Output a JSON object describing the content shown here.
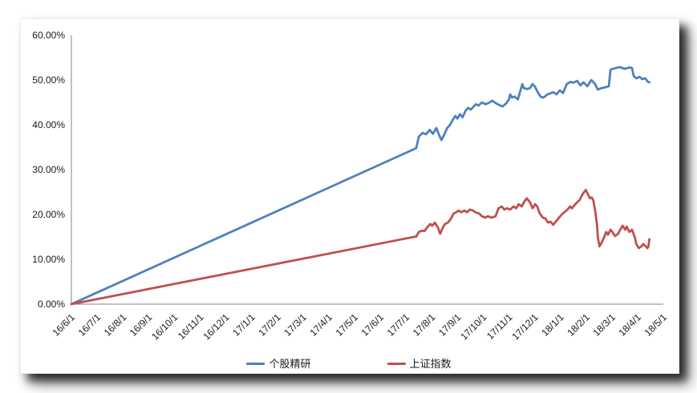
{
  "chart_data": {
    "type": "line",
    "title": "",
    "xlabel": "",
    "ylabel": "",
    "grid": false,
    "legend_position": "bottom",
    "axis_color": "#808080",
    "label_color": "#1a1a1a",
    "ylim": [
      0,
      60
    ],
    "y_ticks": [
      {
        "value": 0,
        "label": "0.00%"
      },
      {
        "value": 10,
        "label": "10.00%"
      },
      {
        "value": 20,
        "label": "20.00%"
      },
      {
        "value": 30,
        "label": "30.00%"
      },
      {
        "value": 40,
        "label": "40.00%"
      },
      {
        "value": 50,
        "label": "50.00%"
      },
      {
        "value": 60,
        "label": "60.00%"
      }
    ],
    "categories": [
      "16/6/1",
      "16/7/1",
      "16/8/1",
      "16/9/1",
      "16/10/1",
      "16/11/1",
      "16/12/1",
      "17/1/1",
      "17/2/1",
      "17/3/1",
      "17/4/1",
      "17/5/1",
      "17/6/1",
      "17/7/1",
      "17/8/1",
      "17/9/1",
      "17/10/1",
      "17/11/1",
      "17/12/1",
      "18/1/1",
      "18/2/1",
      "18/3/1",
      "18/4/1",
      "18/5/1"
    ],
    "x_unit": "months since 16/6/1 (fractional index into categories)",
    "series": [
      {
        "name": "个股精研",
        "color": "#4F81BD",
        "points": [
          [
            0,
            0
          ],
          [
            13.4,
            34.8
          ],
          [
            13.5,
            37.4
          ],
          [
            13.65,
            38.2
          ],
          [
            13.78,
            37.9
          ],
          [
            13.92,
            38.9
          ],
          [
            14.05,
            38.0
          ],
          [
            14.18,
            39.3
          ],
          [
            14.3,
            37.6
          ],
          [
            14.38,
            36.6
          ],
          [
            14.5,
            38.0
          ],
          [
            14.6,
            39.3
          ],
          [
            14.7,
            39.9
          ],
          [
            14.82,
            41.1
          ],
          [
            14.92,
            42.0
          ],
          [
            15.0,
            41.4
          ],
          [
            15.1,
            42.4
          ],
          [
            15.2,
            41.7
          ],
          [
            15.32,
            43.2
          ],
          [
            15.42,
            43.8
          ],
          [
            15.52,
            43.4
          ],
          [
            15.63,
            44.1
          ],
          [
            15.72,
            44.6
          ],
          [
            15.82,
            44.3
          ],
          [
            15.95,
            45.0
          ],
          [
            16.1,
            44.6
          ],
          [
            16.25,
            45.0
          ],
          [
            16.35,
            45.4
          ],
          [
            16.45,
            45.0
          ],
          [
            16.6,
            44.5
          ],
          [
            16.75,
            44.1
          ],
          [
            16.9,
            44.8
          ],
          [
            17.0,
            45.7
          ],
          [
            17.05,
            46.8
          ],
          [
            17.12,
            46.1
          ],
          [
            17.22,
            46.3
          ],
          [
            17.35,
            45.7
          ],
          [
            17.45,
            47.7
          ],
          [
            17.52,
            49.1
          ],
          [
            17.58,
            48.2
          ],
          [
            17.7,
            48.0
          ],
          [
            17.82,
            48.2
          ],
          [
            17.92,
            49.1
          ],
          [
            18.0,
            48.6
          ],
          [
            18.15,
            47.0
          ],
          [
            18.25,
            46.2
          ],
          [
            18.35,
            46.1
          ],
          [
            18.5,
            46.8
          ],
          [
            18.6,
            47.0
          ],
          [
            18.72,
            47.3
          ],
          [
            18.85,
            46.8
          ],
          [
            18.98,
            47.7
          ],
          [
            19.1,
            47.1
          ],
          [
            19.25,
            49.1
          ],
          [
            19.4,
            49.6
          ],
          [
            19.5,
            49.4
          ],
          [
            19.65,
            49.8
          ],
          [
            19.78,
            48.8
          ],
          [
            19.9,
            49.5
          ],
          [
            20.05,
            48.6
          ],
          [
            20.2,
            50.0
          ],
          [
            20.35,
            49.1
          ],
          [
            20.45,
            47.9
          ],
          [
            20.6,
            48.2
          ],
          [
            20.75,
            48.4
          ],
          [
            20.88,
            48.6
          ],
          [
            20.95,
            52.3
          ],
          [
            21.1,
            52.6
          ],
          [
            21.3,
            52.9
          ],
          [
            21.5,
            52.5
          ],
          [
            21.68,
            52.8
          ],
          [
            21.78,
            52.7
          ],
          [
            21.85,
            50.9
          ],
          [
            21.95,
            50.4
          ],
          [
            22.08,
            50.7
          ],
          [
            22.18,
            50.2
          ],
          [
            22.3,
            50.4
          ],
          [
            22.4,
            49.6
          ],
          [
            22.46,
            49.5
          ]
        ]
      },
      {
        "name": "上证指数",
        "color": "#C0504D",
        "points": [
          [
            0,
            0
          ],
          [
            13.4,
            15.1
          ],
          [
            13.5,
            16.1
          ],
          [
            13.62,
            16.4
          ],
          [
            13.72,
            16.3
          ],
          [
            13.85,
            17.3
          ],
          [
            13.95,
            17.9
          ],
          [
            14.02,
            17.5
          ],
          [
            14.12,
            18.2
          ],
          [
            14.25,
            17.0
          ],
          [
            14.33,
            15.7
          ],
          [
            14.45,
            17.3
          ],
          [
            14.52,
            17.9
          ],
          [
            14.63,
            18.2
          ],
          [
            14.75,
            19.1
          ],
          [
            14.85,
            20.2
          ],
          [
            14.95,
            20.5
          ],
          [
            15.05,
            20.9
          ],
          [
            15.15,
            20.5
          ],
          [
            15.27,
            20.9
          ],
          [
            15.38,
            20.5
          ],
          [
            15.48,
            21.1
          ],
          [
            15.6,
            20.9
          ],
          [
            15.7,
            20.5
          ],
          [
            15.85,
            20.2
          ],
          [
            15.95,
            19.6
          ],
          [
            16.08,
            19.3
          ],
          [
            16.18,
            19.6
          ],
          [
            16.32,
            19.3
          ],
          [
            16.48,
            19.6
          ],
          [
            16.6,
            21.4
          ],
          [
            16.72,
            21.8
          ],
          [
            16.82,
            21.1
          ],
          [
            16.92,
            21.4
          ],
          [
            17.05,
            21.1
          ],
          [
            17.18,
            21.8
          ],
          [
            17.28,
            21.4
          ],
          [
            17.38,
            22.3
          ],
          [
            17.5,
            21.8
          ],
          [
            17.6,
            22.9
          ],
          [
            17.7,
            23.6
          ],
          [
            17.82,
            22.7
          ],
          [
            17.92,
            21.4
          ],
          [
            18.02,
            22.3
          ],
          [
            18.1,
            21.8
          ],
          [
            18.2,
            20.2
          ],
          [
            18.32,
            19.3
          ],
          [
            18.42,
            19.1
          ],
          [
            18.52,
            18.2
          ],
          [
            18.62,
            18.4
          ],
          [
            18.72,
            17.7
          ],
          [
            18.82,
            18.4
          ],
          [
            18.95,
            19.3
          ],
          [
            19.05,
            20.0
          ],
          [
            19.15,
            20.5
          ],
          [
            19.28,
            21.1
          ],
          [
            19.38,
            21.8
          ],
          [
            19.45,
            21.4
          ],
          [
            19.58,
            22.3
          ],
          [
            19.68,
            22.9
          ],
          [
            19.75,
            23.2
          ],
          [
            19.82,
            24.1
          ],
          [
            19.92,
            25.0
          ],
          [
            19.99,
            25.5
          ],
          [
            20.06,
            24.6
          ],
          [
            20.15,
            23.6
          ],
          [
            20.22,
            23.8
          ],
          [
            20.28,
            23.2
          ],
          [
            20.35,
            20.9
          ],
          [
            20.42,
            17.9
          ],
          [
            20.46,
            14.8
          ],
          [
            20.52,
            12.9
          ],
          [
            20.62,
            13.9
          ],
          [
            20.72,
            15.2
          ],
          [
            20.78,
            16.1
          ],
          [
            20.85,
            15.5
          ],
          [
            20.95,
            16.6
          ],
          [
            21.02,
            16.1
          ],
          [
            21.12,
            15.2
          ],
          [
            21.25,
            15.7
          ],
          [
            21.3,
            16.4
          ],
          [
            21.42,
            17.5
          ],
          [
            21.52,
            16.6
          ],
          [
            21.58,
            17.3
          ],
          [
            21.68,
            16.1
          ],
          [
            21.78,
            16.6
          ],
          [
            21.9,
            14.8
          ],
          [
            21.95,
            13.4
          ],
          [
            22.05,
            12.5
          ],
          [
            22.15,
            12.9
          ],
          [
            22.22,
            13.4
          ],
          [
            22.3,
            13.0
          ],
          [
            22.38,
            12.5
          ],
          [
            22.42,
            12.9
          ],
          [
            22.46,
            14.5
          ]
        ]
      }
    ]
  }
}
